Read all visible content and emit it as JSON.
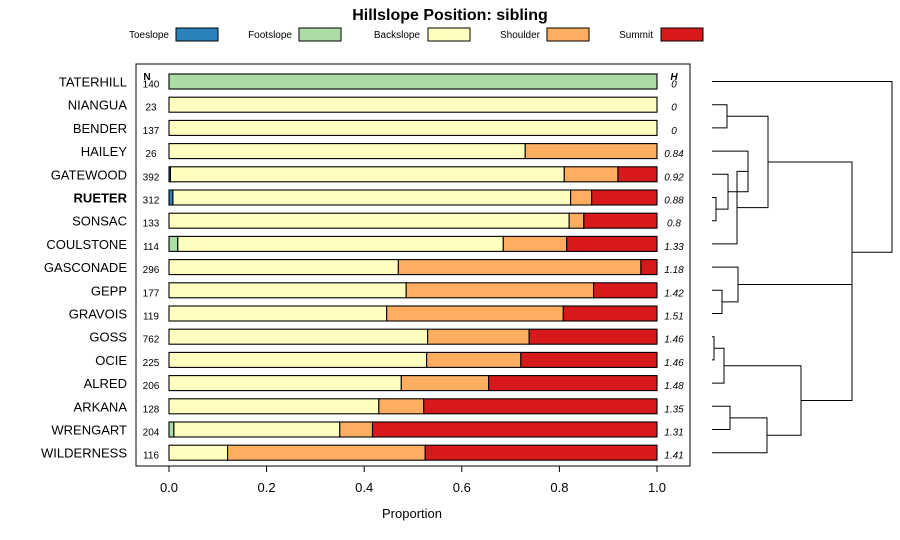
{
  "chart_data": {
    "type": "bar",
    "orientation": "horizontal",
    "stacked": true,
    "title": "Hillslope Position: sibling",
    "xlabel": "Proportion",
    "xlim": [
      0,
      1
    ],
    "x_ticks": [
      "0.0",
      "0.2",
      "0.4",
      "0.6",
      "0.8",
      "1.0"
    ],
    "x_tick_values": [
      0,
      0.2,
      0.4,
      0.6,
      0.8,
      1.0
    ],
    "legend": {
      "placement": "top",
      "entries": [
        {
          "name": "Toeslope",
          "color": "#2b83ba"
        },
        {
          "name": "Footslope",
          "color": "#abdda4"
        },
        {
          "name": "Backslope",
          "color": "#ffffbf"
        },
        {
          "name": "Shoulder",
          "color": "#fdae61"
        },
        {
          "name": "Summit",
          "color": "#d7191c"
        }
      ]
    },
    "n_header": "N",
    "h_header": "H",
    "highlight": "RUETER",
    "categories": [
      "TATERHILL",
      "NIANGUA",
      "BENDER",
      "HAILEY",
      "GATEWOOD",
      "RUETER",
      "SONSAC",
      "COULSTONE",
      "GASCONADE",
      "GEPP",
      "GRAVOIS",
      "GOSS",
      "OCIE",
      "ALRED",
      "ARKANA",
      "WRENGART",
      "WILDERNESS"
    ],
    "n": [
      "140",
      "23",
      "137",
      "26",
      "392",
      "312",
      "133",
      "114",
      "296",
      "177",
      "119",
      "762",
      "225",
      "206",
      "128",
      "204",
      "116"
    ],
    "h": [
      "0",
      "0",
      "0",
      "0.84",
      "0.92",
      "0.88",
      "0.8",
      "1.33",
      "1.18",
      "1.42",
      "1.51",
      "1.46",
      "1.46",
      "1.48",
      "1.35",
      "1.31",
      "1.41"
    ],
    "series": [
      {
        "name": "Toeslope",
        "values": [
          0,
          0,
          0,
          0,
          0.003,
          0.008,
          0,
          0,
          0,
          0,
          0,
          0,
          0,
          0,
          0,
          0,
          0
        ]
      },
      {
        "name": "Footslope",
        "values": [
          1,
          0,
          0,
          0,
          0,
          0,
          0,
          0.018,
          0,
          0,
          0,
          0,
          0,
          0,
          0,
          0.01,
          0
        ]
      },
      {
        "name": "Backslope",
        "values": [
          0,
          1,
          1,
          0.73,
          0.807,
          0.815,
          0.82,
          0.667,
          0.47,
          0.486,
          0.446,
          0.53,
          0.528,
          0.476,
          0.43,
          0.34,
          0.12
        ]
      },
      {
        "name": "Shoulder",
        "values": [
          0,
          0,
          0,
          0.27,
          0.11,
          0.043,
          0.03,
          0.13,
          0.497,
          0.384,
          0.362,
          0.208,
          0.193,
          0.179,
          0.092,
          0.067,
          0.405
        ]
      },
      {
        "name": "Summit",
        "values": [
          0,
          0,
          0,
          0,
          0.08,
          0.134,
          0.15,
          0.185,
          0.033,
          0.13,
          0.192,
          0.262,
          0.279,
          0.345,
          0.478,
          0.583,
          0.475
        ]
      }
    ]
  }
}
